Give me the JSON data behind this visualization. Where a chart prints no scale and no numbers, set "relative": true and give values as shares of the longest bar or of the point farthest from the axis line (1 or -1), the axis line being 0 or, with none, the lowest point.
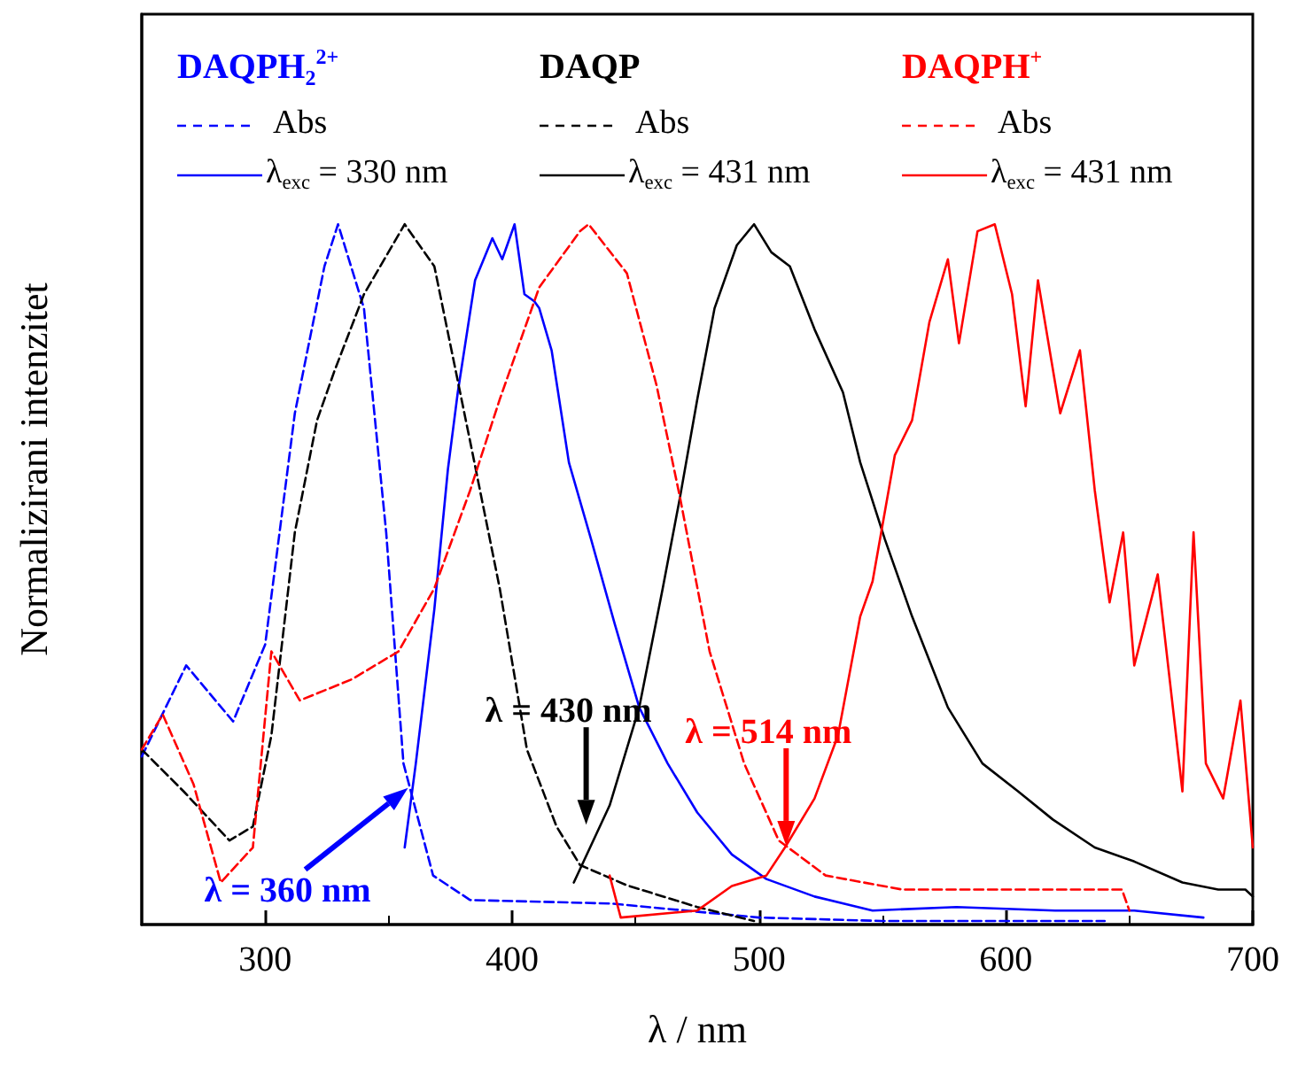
{
  "chart_data": {
    "type": "line",
    "relative": true,
    "xlabel": "λ / nm",
    "ylabel": "Normalizirani intenzitet",
    "xlim": [
      250,
      700
    ],
    "xticks": [
      300,
      400,
      500,
      600,
      700
    ],
    "legend": "top",
    "annotations": [
      "DAQPH$_{2}$$^{2+}$",
      "DAQP",
      "DAQPH$^{+}$",
      {
        "text": "λ = 360 nm",
        "x": 360,
        "y": 0.2
      },
      {
        "text": "λ = 430 nm",
        "x": 430,
        "y": 0.13
      },
      {
        "text": "λ = 514 nm",
        "x": 511,
        "y": 0.1
      }
    ],
    "series": [
      {
        "name": "Abs",
        "color": "#0000ff",
        "line_style": "dashed",
        "x": [
          250,
          268,
          287,
          300,
          312,
          324,
          329.5,
          340,
          349,
          356,
          368,
          383,
          440,
          500,
          550,
          640
        ],
        "values": [
          0.24,
          0.37,
          0.29,
          0.4,
          0.73,
          0.94,
          1,
          0.88,
          0.56,
          0.23,
          0.07,
          0.035,
          0.03,
          0.01,
          0.005,
          0.005
        ]
      },
      {
        "name": "λ$_{exc}$ = 330 nm",
        "color": "#0000ff",
        "line_style": "solid",
        "x": [
          356.5,
          361,
          368.5,
          374,
          378,
          385,
          392,
          396,
          401,
          405,
          409,
          411,
          416,
          423,
          432,
          441.5,
          451.5,
          463,
          475,
          489,
          503,
          522.5,
          546,
          580,
          620,
          652,
          680
        ],
        "values": [
          0.11,
          0.23,
          0.45,
          0.65,
          0.76,
          0.92,
          0.98,
          0.95,
          1,
          0.9,
          0.89,
          0.88,
          0.82,
          0.66,
          0.55,
          0.43,
          0.31,
          0.23,
          0.16,
          0.1,
          0.065,
          0.04,
          0.02,
          0.025,
          0.02,
          0.02,
          0.01
        ]
      },
      {
        "name": "Abs",
        "color": "#000000",
        "line_style": "dashed",
        "x": [
          250,
          267,
          285.5,
          295,
          302.5,
          312,
          321,
          328,
          340,
          356.5,
          368.5,
          383,
          395,
          406,
          418,
          427.5,
          446.5,
          475,
          498
        ],
        "values": [
          0.25,
          0.19,
          0.12,
          0.14,
          0.27,
          0.56,
          0.72,
          0.79,
          0.9,
          1,
          0.94,
          0.69,
          0.48,
          0.25,
          0.14,
          0.085,
          0.056,
          0.025,
          0.005
        ]
      },
      {
        "name": "λ$_{exc}$ = 431 nm",
        "color": "#000000",
        "line_style": "solid",
        "x": [
          425,
          439.5,
          451.5,
          461,
          468,
          475,
          482,
          491,
          498,
          505,
          512.5,
          522.5,
          534,
          541,
          551,
          562,
          576.5,
          590.5,
          605,
          619,
          636,
          652,
          671.5,
          686,
          697,
          700
        ],
        "values": [
          0.06,
          0.17,
          0.31,
          0.48,
          0.61,
          0.75,
          0.88,
          0.97,
          1,
          0.96,
          0.94,
          0.85,
          0.76,
          0.66,
          0.55,
          0.44,
          0.31,
          0.23,
          0.19,
          0.15,
          0.11,
          0.09,
          0.06,
          0.05,
          0.05,
          0.04
        ]
      },
      {
        "name": "Abs",
        "color": "#ff0000",
        "line_style": "dashed",
        "x": [
          250,
          258.5,
          271,
          282,
          295,
          302.5,
          314,
          335,
          354,
          368.5,
          383,
          395,
          411,
          427.5,
          431,
          446.5,
          458.5,
          468,
          480,
          494,
          508,
          527,
          558,
          600,
          647,
          650
        ],
        "values": [
          0.25,
          0.3,
          0.2,
          0.06,
          0.11,
          0.39,
          0.32,
          0.35,
          0.39,
          0.48,
          0.62,
          0.75,
          0.91,
          0.99,
          1,
          0.93,
          0.77,
          0.61,
          0.39,
          0.23,
          0.12,
          0.07,
          0.05,
          0.05,
          0.05,
          0.02
        ]
      },
      {
        "name": "λ$_{exc}$ = 431 nm",
        "color": "#ff0000",
        "line_style": "solid",
        "x": [
          439.5,
          444,
          475,
          489,
          503,
          510.5,
          522.5,
          532,
          541,
          546,
          555,
          562,
          569,
          576.5,
          581,
          588.5,
          595.5,
          602.5,
          608,
          613,
          622,
          630,
          636,
          642,
          647.5,
          652,
          661.5,
          671.5,
          676,
          681,
          688,
          695,
          700
        ],
        "values": [
          0.07,
          0.01,
          0.02,
          0.055,
          0.07,
          0.11,
          0.18,
          0.27,
          0.44,
          0.49,
          0.67,
          0.72,
          0.86,
          0.95,
          0.83,
          0.99,
          1,
          0.9,
          0.74,
          0.92,
          0.73,
          0.82,
          0.62,
          0.46,
          0.56,
          0.37,
          0.5,
          0.19,
          0.56,
          0.23,
          0.18,
          0.32,
          0.11
        ]
      }
    ]
  }
}
